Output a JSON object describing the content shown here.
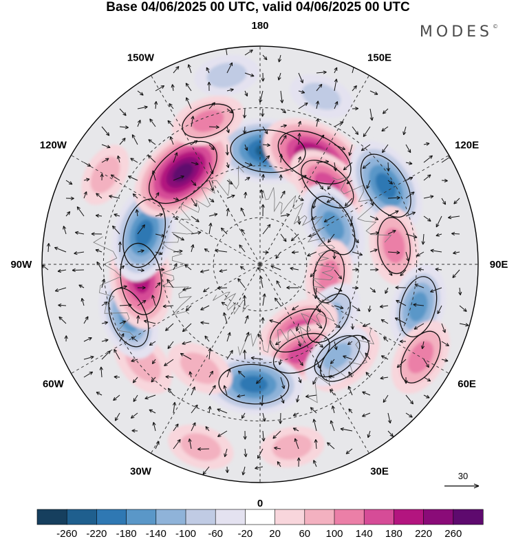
{
  "title": "Base 04/06/2025 00 UTC, valid 04/06/2025 00 UTC",
  "brand": {
    "name": "MODES",
    "mark": "©"
  },
  "longitude_labels": [
    {
      "text": "180",
      "lon": 180
    },
    {
      "text": "150E",
      "lon": 150
    },
    {
      "text": "120E",
      "lon": 120
    },
    {
      "text": "90E",
      "lon": 90
    },
    {
      "text": "60E",
      "lon": 60
    },
    {
      "text": "30E",
      "lon": 30
    },
    {
      "text": "0",
      "lon": 0
    },
    {
      "text": "30W",
      "lon": -30
    },
    {
      "text": "60W",
      "lon": -60
    },
    {
      "text": "90W",
      "lon": -90
    },
    {
      "text": "120W",
      "lon": -120
    },
    {
      "text": "150W",
      "lon": -150
    }
  ],
  "vector_key": {
    "value": "30"
  },
  "colorbar": {
    "ticks": [
      "-260",
      "-220",
      "-180",
      "-140",
      "-100",
      "-60",
      "-20",
      "20",
      "60",
      "100",
      "140",
      "180",
      "220",
      "260"
    ],
    "colors": [
      "#163f5e",
      "#1f5f8e",
      "#2f78b3",
      "#5a97c8",
      "#8fb3d9",
      "#c0cbe4",
      "#e4e2f0",
      "#ffffff",
      "#f8d6dc",
      "#f3b1c0",
      "#eb7fa7",
      "#d64c97",
      "#b3157f",
      "#8a0b78",
      "#5e0a6e"
    ]
  },
  "anomalies": [
    {
      "lon": 176,
      "r": 0.52,
      "value": -230
    },
    {
      "lon": 153,
      "r": 0.55,
      "value": 250
    },
    {
      "lon": 140,
      "r": 0.48,
      "value": 150
    },
    {
      "lon": 122,
      "r": 0.68,
      "value": -200
    },
    {
      "lon": 118,
      "r": 0.38,
      "value": -160
    },
    {
      "lon": 98,
      "r": 0.62,
      "value": 120
    },
    {
      "lon": 80,
      "r": 0.32,
      "value": 100
    },
    {
      "lon": 75,
      "r": 0.75,
      "value": -150
    },
    {
      "lon": 60,
      "r": 0.85,
      "value": 120
    },
    {
      "lon": 52,
      "r": 0.4,
      "value": -120
    },
    {
      "lon": 42,
      "r": 0.58,
      "value": 130
    },
    {
      "lon": 30,
      "r": 0.35,
      "value": 150
    },
    {
      "lon": 25,
      "r": 0.45,
      "value": 140
    },
    {
      "lon": 40,
      "r": 0.55,
      "value": -100
    },
    {
      "lon": -3,
      "r": 0.55,
      "value": -200
    },
    {
      "lon": -30,
      "r": 0.55,
      "value": 80
    },
    {
      "lon": -50,
      "r": 0.7,
      "value": 90
    },
    {
      "lon": -68,
      "r": 0.65,
      "value": -150
    },
    {
      "lon": -83,
      "r": 0.55,
      "value": 210
    },
    {
      "lon": -105,
      "r": 0.55,
      "value": -200
    },
    {
      "lon": -140,
      "r": 0.55,
      "value": 260
    },
    {
      "lon": -120,
      "r": 0.82,
      "value": 60
    },
    {
      "lon": -160,
      "r": 0.7,
      "value": 100
    },
    {
      "lon": -170,
      "r": 0.88,
      "value": -60
    },
    {
      "lon": 10,
      "r": 0.85,
      "value": 60
    },
    {
      "lon": -18,
      "r": 0.88,
      "value": 70
    },
    {
      "lon": 160,
      "r": 0.82,
      "value": -60
    }
  ]
}
